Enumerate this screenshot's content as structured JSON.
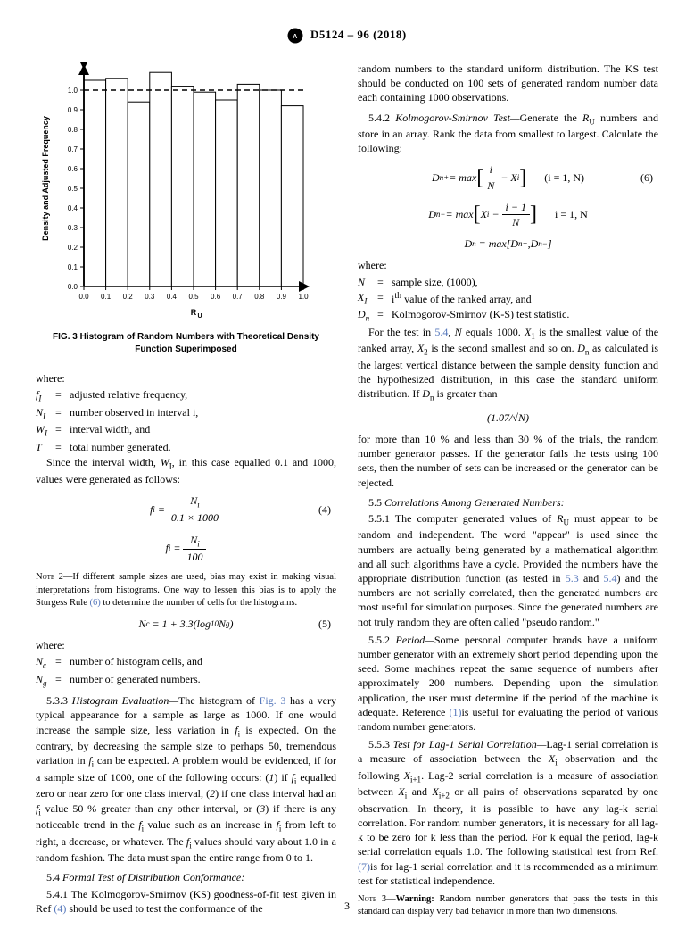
{
  "header": {
    "std_num": "D5124 – 96 (2018)"
  },
  "chart": {
    "type": "histogram+line",
    "xlabel": "R_U",
    "ylabel": "Density and Adjusted Frequency",
    "xlim": [
      0.0,
      1.0
    ],
    "ylim": [
      0.0,
      1.1
    ],
    "xticks": [
      0.0,
      0.1,
      0.2,
      0.3,
      0.4,
      0.5,
      0.6,
      0.7,
      0.8,
      0.9,
      1.0
    ],
    "yticks": [
      0.0,
      0.1,
      0.2,
      0.3,
      0.4,
      0.5,
      0.6,
      0.7,
      0.8,
      0.9,
      1.0
    ],
    "bars": [
      1.05,
      1.06,
      0.94,
      1.09,
      1.02,
      0.99,
      0.95,
      1.03,
      1.0,
      0.92
    ],
    "bar_border": "#000000",
    "bar_fill": "#ffffff",
    "dashed_y": 1.0,
    "arrow_color": "#000000",
    "bg": "#ffffff",
    "axis_label_font": 9,
    "tick_font": 8
  },
  "fig_caption": "FIG. 3 Histogram of Random Numbers with Theoretical Density Function Superimposed",
  "left": {
    "where": "where:",
    "defs1": [
      {
        "sym": "f_I",
        "txt": "adjusted relative frequency,"
      },
      {
        "sym": "N_I",
        "txt": "number observed in interval i,"
      },
      {
        "sym": "W_I",
        "txt": "interval width, and"
      },
      {
        "sym": "T",
        "txt": "total number generated."
      }
    ],
    "p1": "Since the interval width, W_I, in this case equalled 0.1 and 1000, values were generated as follows:",
    "eq4_num": "(4)",
    "note2": "NOTE 2—If different sample sizes are used, bias may exist in making visual interpretations from histograms. One way to lessen this bias is to apply the Sturgess Rule (6) to determine the number of cells for the histograms.",
    "eq5_num": "(5)",
    "defs2": [
      {
        "sym": "N_c",
        "txt": "number of histogram cells, and"
      },
      {
        "sym": "N_g",
        "txt": "number of generated numbers."
      }
    ],
    "s533_head": "5.3.3 Histogram Evaluation—",
    "s533_body": "The histogram of Fig. 3 has a very typical appearance for a sample as large as 1000. If one would increase the sample size, less variation in f_i is expected. On the contrary, by decreasing the sample size to perhaps 50, tremendous variation in f_i can be expected. A problem would be evidenced, if for a sample size of 1000, one of the following occurs: (1) if f_i equalled zero or near zero for one class interval, (2) if one class interval had an f_i value 50 % greater than any other interval, or (3) if there is any noticeable trend in the f_i value such as an increase in f_i from left to right, a decrease, or whatever. The f_i values should vary about 1.0 in a random fashion. The data must span the entire range from 0 to 1.",
    "s54_head": "5.4 Formal Test of Distribution Conformance:",
    "s541": "5.4.1 The Kolmogorov-Smirnov (KS) goodness-of-fit test given in Ref (4) should be used to test the conformance of the"
  },
  "right": {
    "p_top": "random numbers to the standard uniform distribution. The KS test should be conducted on 100 sets of generated random number data each containing 1000 observations.",
    "s542_head": "5.4.2 Kolmogorov-Smirnov Test—",
    "s542_body": "Generate the R_U numbers and store in an array. Rank the data from smallest to largest. Calculate the following:",
    "eq6_num": "(6)",
    "eq6_range": "(i = 1, N)",
    "eq6b_range": "i = 1, N",
    "where": "where:",
    "defs": [
      {
        "sym": "N",
        "txt": "sample size, (1000),"
      },
      {
        "sym": "X_I",
        "txt": "i^th value of the ranked array, and"
      },
      {
        "sym": "D_n",
        "txt": "Kolmogorov-Smirnov (K-S) test statistic."
      }
    ],
    "p_test": "For the test in 5.4, N equals 1000. X_1 is the smallest value of the ranked array, X_2 is the second smallest and so on. D_n as calculated is the largest vertical distance between the sample density function and the hypothesized distribution, in this case the standard uniform distribution. If D_n is greater than",
    "p_after": "for more than 10 % and less than 30 % of the trials, the random number generator passes. If the generator fails the tests using 100 sets, then the number of sets can be increased or the generator can be rejected.",
    "s55_head": "5.5 Correlations Among Generated Numbers:",
    "s551": "5.5.1 The computer generated values of R_U must appear to be random and independent. The word \"appear\" is used since the numbers are actually being generated by a mathematical algorithm and all such algorithms have a cycle. Provided the numbers have the appropriate distribution function (as tested in 5.3 and 5.4) and the numbers are not serially correlated, then the generated numbers are most useful for simulation purposes. Since the generated numbers are not truly random they are often called \"pseudo random.\"",
    "s552_head": "5.5.2 Period—",
    "s552_body": "Some personal computer brands have a uniform number generator with an extremely short period depending upon the seed. Some machines repeat the same sequence of numbers after approximately 200 numbers. Depending upon the simulation application, the user must determine if the period of the machine is adequate. Reference (1) is useful for evaluating the period of various random number generators.",
    "s553_head": "5.5.3 Test for Lag-1 Serial Correlation—",
    "s553_body": "Lag-1 serial correlation is a measure of association between the X_i observation and the following X_{i+1}. Lag-2 serial correlation is a measure of association between X_i and X_{i+2} or all pairs of observations separated by one observation. In theory, it is possible to have any lag-k serial correlation. For random number generators, it is necessary for all lag-k to be zero for k less than the period. For k equal the period, lag-k serial correlation equals 1.0. The following statistical test from Ref. (7) is for lag-1 serial correlation and it is recommended as a minimum test for statistical independence.",
    "note3": "NOTE 3—Warning: Random number generators that pass the tests in this standard can display very bad behavior in more than two dimensions."
  },
  "page": "3"
}
